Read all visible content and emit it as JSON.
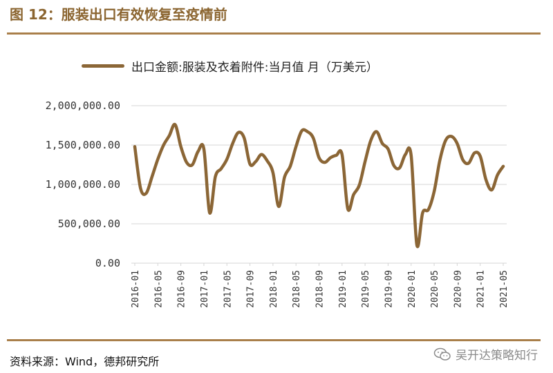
{
  "figure": {
    "title": "图 12：服装出口有效恢复至疫情前",
    "source": "资料来源：Wind，德邦研究所",
    "watermark": "吴开达策略知行",
    "watermark_icon": "wechat-icon"
  },
  "colors": {
    "accent": "#8b6530",
    "rule": "#a97f4a",
    "series": "#8b6636",
    "grid": "#d4d4d4"
  },
  "chart_data": {
    "type": "line",
    "legend": "top",
    "grid": true,
    "ylim": [
      0,
      2000000
    ],
    "y_ticks": [
      0,
      500000,
      1000000,
      1500000,
      2000000
    ],
    "y_tick_labels": [
      "0.00",
      "500,000.00",
      "1,000,000.00",
      "1,500,000.00",
      "2,000,000.00"
    ],
    "x_tick_labels": [
      "2016-01",
      "2016-05",
      "2016-09",
      "2017-01",
      "2017-05",
      "2017-09",
      "2018-01",
      "2018-05",
      "2018-09",
      "2019-01",
      "2019-05",
      "2019-09",
      "2020-01",
      "2020-05",
      "2020-09",
      "2021-01",
      "2021-05"
    ],
    "x": [
      "2016-01",
      "2016-02",
      "2016-03",
      "2016-04",
      "2016-05",
      "2016-06",
      "2016-07",
      "2016-08",
      "2016-09",
      "2016-10",
      "2016-11",
      "2016-12",
      "2017-01",
      "2017-02",
      "2017-03",
      "2017-04",
      "2017-05",
      "2017-06",
      "2017-07",
      "2017-08",
      "2017-09",
      "2017-10",
      "2017-11",
      "2017-12",
      "2018-01",
      "2018-02",
      "2018-03",
      "2018-04",
      "2018-05",
      "2018-06",
      "2018-07",
      "2018-08",
      "2018-09",
      "2018-10",
      "2018-11",
      "2018-12",
      "2019-01",
      "2019-02",
      "2019-03",
      "2019-04",
      "2019-05",
      "2019-06",
      "2019-07",
      "2019-08",
      "2019-09",
      "2019-10",
      "2019-11",
      "2019-12",
      "2020-01",
      "2020-02",
      "2020-03",
      "2020-04",
      "2020-05",
      "2020-06",
      "2020-07",
      "2020-08",
      "2020-09",
      "2020-10",
      "2020-11",
      "2020-12",
      "2021-01",
      "2021-02",
      "2021-03",
      "2021-04",
      "2021-05"
    ],
    "series": [
      {
        "name": "出口金额:服装及衣着附件:当月值 月（万美元）",
        "values": [
          1480000,
          950000,
          890000,
          1100000,
          1320000,
          1500000,
          1620000,
          1760000,
          1480000,
          1280000,
          1250000,
          1420000,
          1450000,
          640000,
          1100000,
          1200000,
          1320000,
          1520000,
          1660000,
          1590000,
          1260000,
          1290000,
          1380000,
          1300000,
          1150000,
          720000,
          1090000,
          1230000,
          1480000,
          1680000,
          1670000,
          1590000,
          1340000,
          1280000,
          1340000,
          1370000,
          1380000,
          690000,
          870000,
          990000,
          1290000,
          1560000,
          1670000,
          1520000,
          1450000,
          1240000,
          1210000,
          1380000,
          1370000,
          230000,
          640000,
          680000,
          910000,
          1310000,
          1560000,
          1610000,
          1520000,
          1310000,
          1270000,
          1400000,
          1360000,
          1060000,
          930000,
          1120000,
          1230000
        ]
      }
    ]
  }
}
